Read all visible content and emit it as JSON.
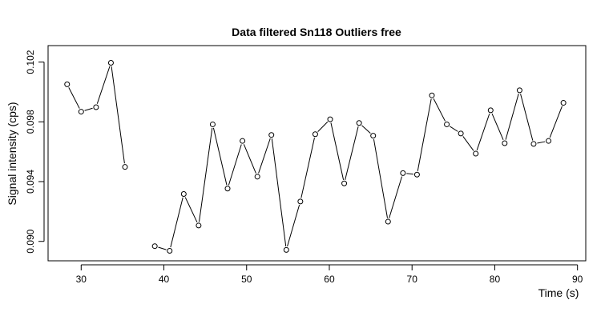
{
  "chart_data": {
    "type": "line",
    "title": "Data filtered Sn118 Outliers free",
    "xlabel": "Time (s)",
    "ylabel": "Signal intensity (cps)",
    "xlim": [
      26,
      91
    ],
    "ylim": [
      0.0887,
      0.1031
    ],
    "xticks": [
      30,
      40,
      50,
      60,
      70,
      80,
      90
    ],
    "yticks": [
      0.09,
      0.094,
      0.098,
      0.102
    ],
    "ytick_labels": [
      "0.090",
      "0.094",
      "0.098",
      "0.102"
    ],
    "grid": false,
    "marker": "open-circle",
    "series": [
      {
        "segments": [
          [
            {
              "x": 28.3,
              "y": 0.10051
            },
            {
              "x": 30.0,
              "y": 0.09868
            },
            {
              "x": 31.8,
              "y": 0.09898
            },
            {
              "x": 33.6,
              "y": 0.10195
            },
            {
              "x": 35.3,
              "y": 0.09498
            }
          ],
          [
            {
              "x": 38.9,
              "y": 0.08968
            },
            {
              "x": 40.7,
              "y": 0.08937
            },
            {
              "x": 42.4,
              "y": 0.09317
            },
            {
              "x": 44.2,
              "y": 0.09106
            },
            {
              "x": 45.9,
              "y": 0.09783
            },
            {
              "x": 47.7,
              "y": 0.09353
            },
            {
              "x": 49.5,
              "y": 0.09672
            },
            {
              "x": 51.3,
              "y": 0.09433
            },
            {
              "x": 53.0,
              "y": 0.09712
            },
            {
              "x": 54.8,
              "y": 0.08943
            },
            {
              "x": 56.5,
              "y": 0.09267
            },
            {
              "x": 58.3,
              "y": 0.09717
            },
            {
              "x": 60.1,
              "y": 0.09817
            },
            {
              "x": 61.8,
              "y": 0.09388
            },
            {
              "x": 63.6,
              "y": 0.09792
            },
            {
              "x": 65.3,
              "y": 0.09707
            },
            {
              "x": 67.1,
              "y": 0.09132
            },
            {
              "x": 68.9,
              "y": 0.09457
            },
            {
              "x": 70.6,
              "y": 0.09447
            },
            {
              "x": 72.4,
              "y": 0.09977
            },
            {
              "x": 74.2,
              "y": 0.09783
            },
            {
              "x": 75.9,
              "y": 0.09722
            },
            {
              "x": 77.7,
              "y": 0.09587
            },
            {
              "x": 79.5,
              "y": 0.09877
            },
            {
              "x": 81.2,
              "y": 0.09657
            },
            {
              "x": 83.0,
              "y": 0.10011
            },
            {
              "x": 84.7,
              "y": 0.09652
            },
            {
              "x": 86.5,
              "y": 0.09672
            },
            {
              "x": 88.3,
              "y": 0.09927
            }
          ]
        ]
      }
    ]
  }
}
